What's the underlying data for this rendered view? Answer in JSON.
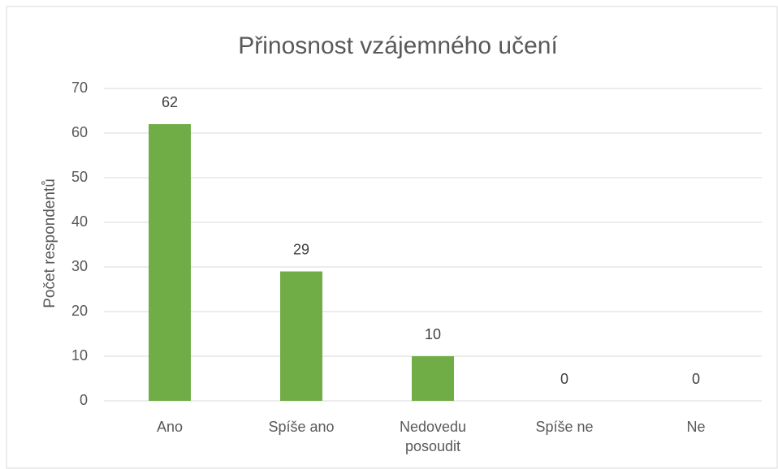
{
  "chart_data": {
    "type": "bar",
    "title": "Přinosnost vzájemného učení",
    "y_label": "Počet respondentů",
    "categories": [
      "Ano",
      "Spíše ano",
      "Nedovedu posoudit",
      "Spíše ne",
      "Ne"
    ],
    "values": [
      62,
      29,
      10,
      0,
      0
    ],
    "color": "#70ad47",
    "ylim": [
      0,
      70
    ],
    "yticks": [
      0,
      10,
      20,
      30,
      40,
      50,
      60,
      70
    ],
    "grid": true
  }
}
